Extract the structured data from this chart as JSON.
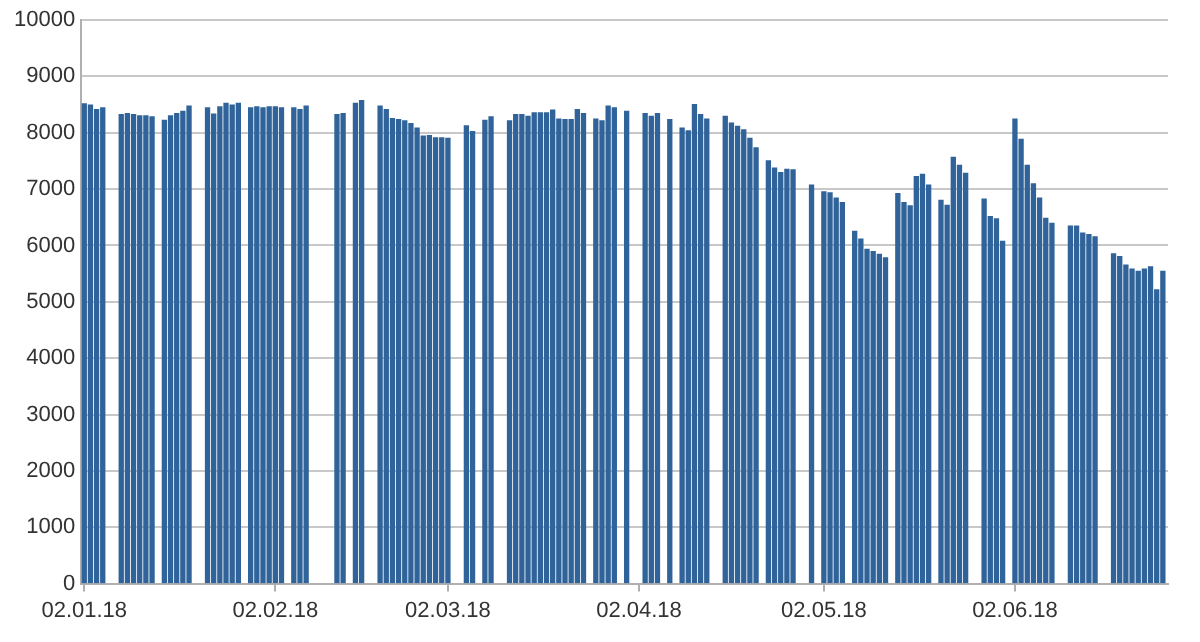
{
  "chart_data": {
    "type": "bar",
    "color": "#2f6399",
    "grid": "y",
    "x": [
      "2018-01-02",
      "2018-01-03",
      "2018-01-04",
      "2018-01-05",
      "2018-01-08",
      "2018-01-09",
      "2018-01-10",
      "2018-01-11",
      "2018-01-12",
      "2018-01-13",
      "2018-01-15",
      "2018-01-16",
      "2018-01-17",
      "2018-01-18",
      "2018-01-19",
      "2018-01-22",
      "2018-01-23",
      "2018-01-24",
      "2018-01-25",
      "2018-01-26",
      "2018-01-27",
      "2018-01-29",
      "2018-01-30",
      "2018-01-31",
      "2018-02-01",
      "2018-02-02",
      "2018-02-03",
      "2018-02-05",
      "2018-02-06",
      "2018-02-07",
      "2018-02-12",
      "2018-02-13",
      "2018-02-15",
      "2018-02-16",
      "2018-02-19",
      "2018-02-20",
      "2018-02-21",
      "2018-02-22",
      "2018-02-23",
      "2018-02-24",
      "2018-02-25",
      "2018-02-26",
      "2018-02-27",
      "2018-02-28",
      "2018-03-01",
      "2018-03-02",
      "2018-03-05",
      "2018-03-06",
      "2018-03-08",
      "2018-03-09",
      "2018-03-12",
      "2018-03-13",
      "2018-03-14",
      "2018-03-15",
      "2018-03-16",
      "2018-03-17",
      "2018-03-18",
      "2018-03-19",
      "2018-03-20",
      "2018-03-21",
      "2018-03-22",
      "2018-03-23",
      "2018-03-24",
      "2018-03-26",
      "2018-03-27",
      "2018-03-28",
      "2018-03-29",
      "2018-03-31",
      "2018-04-03",
      "2018-04-04",
      "2018-04-05",
      "2018-04-07",
      "2018-04-09",
      "2018-04-10",
      "2018-04-11",
      "2018-04-12",
      "2018-04-13",
      "2018-04-16",
      "2018-04-17",
      "2018-04-18",
      "2018-04-19",
      "2018-04-20",
      "2018-04-21",
      "2018-04-23",
      "2018-04-24",
      "2018-04-25",
      "2018-04-26",
      "2018-04-27",
      "2018-04-30",
      "2018-05-02",
      "2018-05-03",
      "2018-05-04",
      "2018-05-05",
      "2018-05-07",
      "2018-05-08",
      "2018-05-09",
      "2018-05-10",
      "2018-05-11",
      "2018-05-12",
      "2018-05-14",
      "2018-05-15",
      "2018-05-16",
      "2018-05-17",
      "2018-05-18",
      "2018-05-19",
      "2018-05-21",
      "2018-05-22",
      "2018-05-23",
      "2018-05-24",
      "2018-05-25",
      "2018-05-28",
      "2018-05-29",
      "2018-05-30",
      "2018-05-31",
      "2018-06-02",
      "2018-06-03",
      "2018-06-04",
      "2018-06-05",
      "2018-06-06",
      "2018-06-07",
      "2018-06-08",
      "2018-06-11",
      "2018-06-12",
      "2018-06-13",
      "2018-06-14",
      "2018-06-15",
      "2018-06-18",
      "2018-06-19",
      "2018-06-20",
      "2018-06-21",
      "2018-06-22",
      "2018-06-23",
      "2018-06-24",
      "2018-06-25",
      "2018-06-26"
    ],
    "values": [
      8510,
      8490,
      8410,
      8440,
      8320,
      8340,
      8320,
      8300,
      8300,
      8280,
      8220,
      8300,
      8340,
      8380,
      8470,
      8440,
      8330,
      8460,
      8520,
      8490,
      8520,
      8440,
      8460,
      8440,
      8460,
      8460,
      8440,
      8440,
      8410,
      8470,
      8320,
      8340,
      8520,
      8570,
      8470,
      8410,
      8250,
      8230,
      8210,
      8160,
      8080,
      7940,
      7950,
      7910,
      7910,
      7900,
      8120,
      8020,
      8220,
      8280,
      8210,
      8320,
      8320,
      8290,
      8350,
      8350,
      8350,
      8400,
      8240,
      8230,
      8230,
      8410,
      8340,
      8240,
      8210,
      8470,
      8440,
      8380,
      8340,
      8290,
      8340,
      8230,
      8080,
      8030,
      8500,
      8320,
      8240,
      8290,
      8170,
      8110,
      8050,
      7900,
      7730,
      7500,
      7370,
      7290,
      7350,
      7340,
      7070,
      6950,
      6930,
      6840,
      6760,
      6250,
      6110,
      5930,
      5890,
      5840,
      5780,
      6920,
      6760,
      6700,
      7220,
      7260,
      7070,
      6800,
      6710,
      7560,
      7420,
      7280,
      6820,
      6510,
      6470,
      6070,
      8240,
      7880,
      7420,
      7090,
      6840,
      6480,
      6390,
      6340,
      6340,
      6220,
      6190,
      6150,
      5850,
      5800,
      5650,
      5580,
      5540,
      5580,
      5620,
      5210,
      5540
    ],
    "xlim": [
      "2018-01-01T12:00",
      "2018-06-26T20:00"
    ],
    "xticks": [
      {
        "value": "2018-01-02",
        "label": "02.01.18"
      },
      {
        "value": "2018-02-02",
        "label": "02.02.18"
      },
      {
        "value": "2018-03-02",
        "label": "02.03.18"
      },
      {
        "value": "2018-04-02",
        "label": "02.04.18"
      },
      {
        "value": "2018-05-02",
        "label": "02.05.18"
      },
      {
        "value": "2018-06-02",
        "label": "02.06.18"
      }
    ],
    "ylim": [
      0,
      10000
    ],
    "yticks": [
      0,
      1000,
      2000,
      3000,
      4000,
      5000,
      6000,
      7000,
      8000,
      9000,
      10000
    ]
  }
}
